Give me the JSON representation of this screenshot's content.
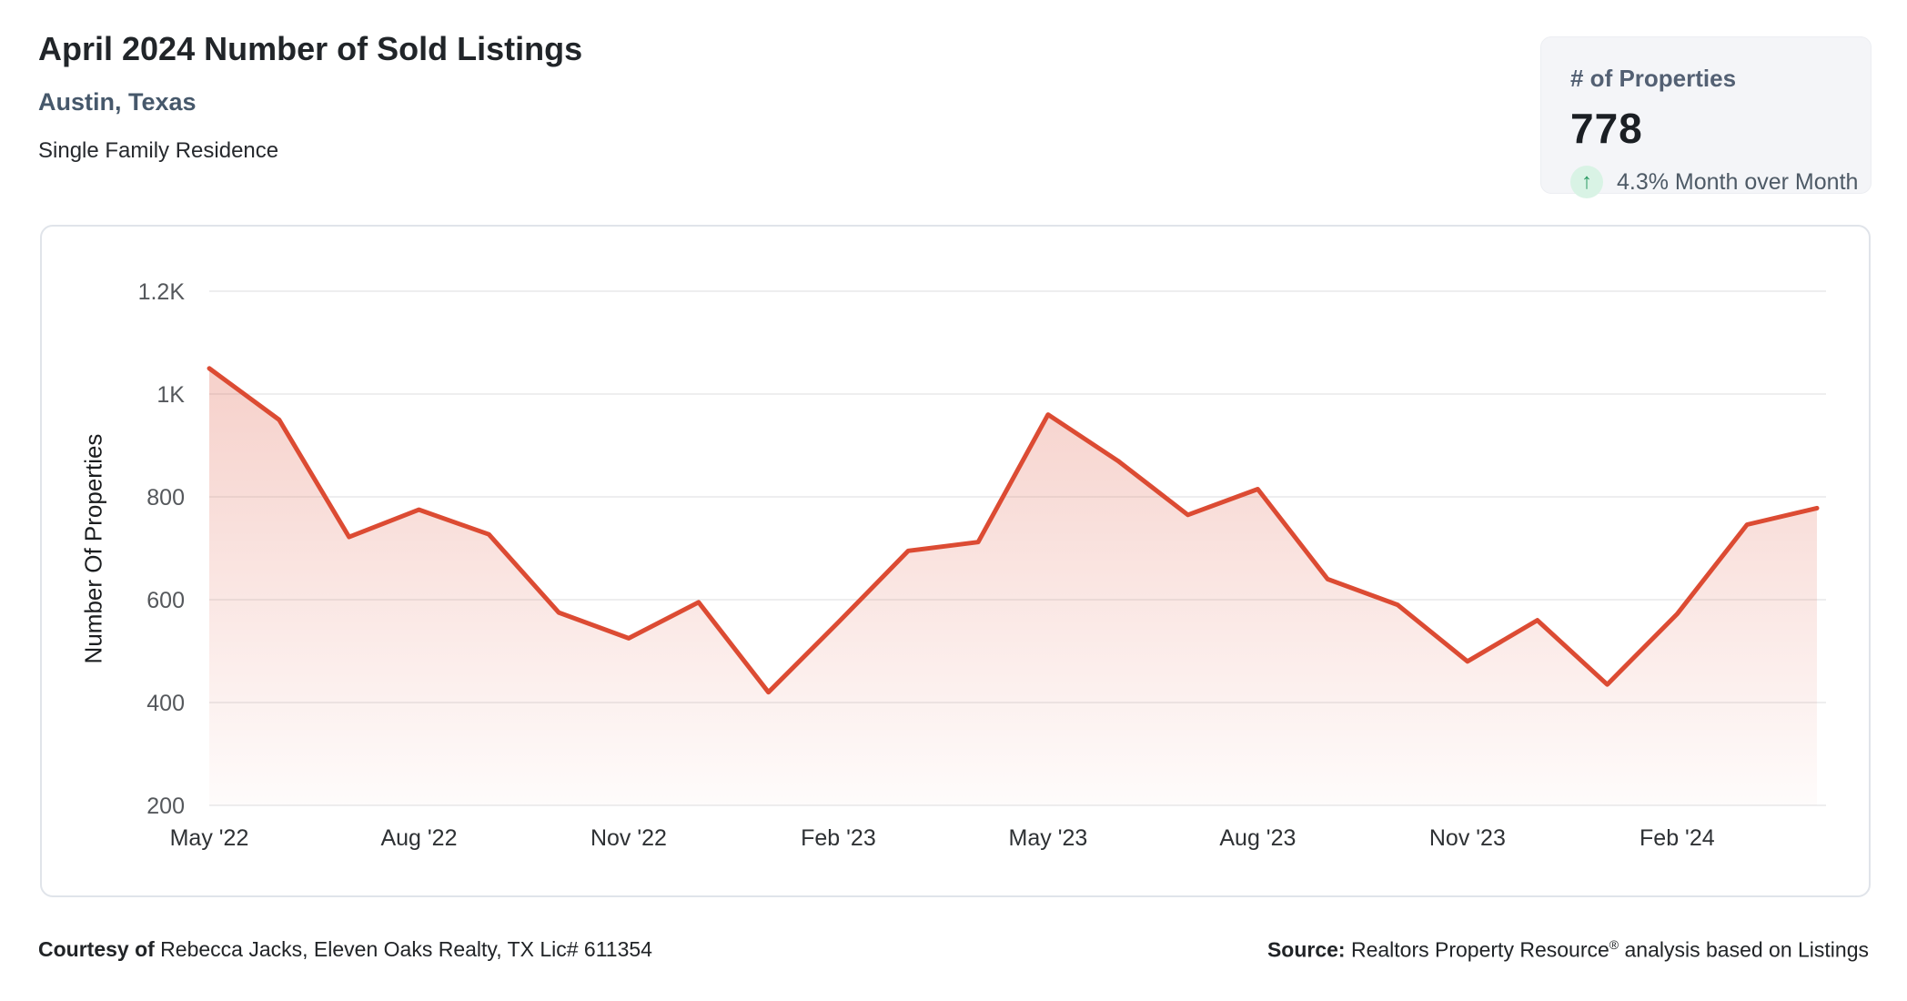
{
  "header": {
    "title": "April 2024 Number of Sold Listings",
    "location": "Austin, Texas",
    "property_type": "Single Family Residence"
  },
  "stat_card": {
    "label": "# of Properties",
    "value": "778",
    "delta_arrow": "↑",
    "delta_text": "4.3% Month over Month",
    "delta_arrow_color": "#2b9a63",
    "delta_circle_color": "#d9f3e5"
  },
  "chart_data": {
    "type": "area",
    "title": "April 2024 Number of Sold Listings",
    "x": [
      "May '22",
      "Jun '22",
      "Jul '22",
      "Aug '22",
      "Sep '22",
      "Oct '22",
      "Nov '22",
      "Dec '22",
      "Jan '23",
      "Feb '23",
      "Mar '23",
      "Apr '23",
      "May '23",
      "Jun '23",
      "Jul '23",
      "Aug '23",
      "Sep '23",
      "Oct '23",
      "Nov '23",
      "Dec '23",
      "Jan '24",
      "Feb '24",
      "Mar '24",
      "Apr '24"
    ],
    "values": [
      1050,
      950,
      722,
      775,
      727,
      575,
      525,
      595,
      420,
      556,
      695,
      712,
      960,
      870,
      765,
      815,
      640,
      590,
      480,
      560,
      435,
      572,
      746,
      778
    ],
    "ylabel": "Number Of Properties",
    "xlabel": "",
    "ylim": [
      200,
      1200
    ],
    "yticks": [
      200,
      400,
      600,
      800,
      1000,
      1200
    ],
    "ytick_labels": [
      "200",
      "400",
      "600",
      "800",
      "1K",
      "1.2K"
    ],
    "xtick_indices": [
      0,
      3,
      6,
      9,
      12,
      15,
      18,
      21
    ],
    "xtick_labels": [
      "May '22",
      "Aug '22",
      "Nov '22",
      "Feb '23",
      "May '23",
      "Aug '23",
      "Nov '23",
      "Feb '24"
    ],
    "grid": "horizontal",
    "legend": "none",
    "line_color": "#dc4b33",
    "area_top_color": "rgba(220,75,51,0.30)",
    "area_bottom_color": "rgba(220,75,51,0.02)",
    "gridline_color": "#e8e9ea",
    "ytick_color": "#55585c",
    "xtick_color": "#2e3134"
  },
  "footer": {
    "courtesy_label": "Courtesy of",
    "courtesy_text": " Rebecca Jacks, Eleven Oaks Realty, TX Lic# 611354",
    "source_label": "Source:",
    "source_text": " Realtors Property Resource",
    "source_sup": "®",
    "source_suffix": " analysis based on Listings"
  }
}
